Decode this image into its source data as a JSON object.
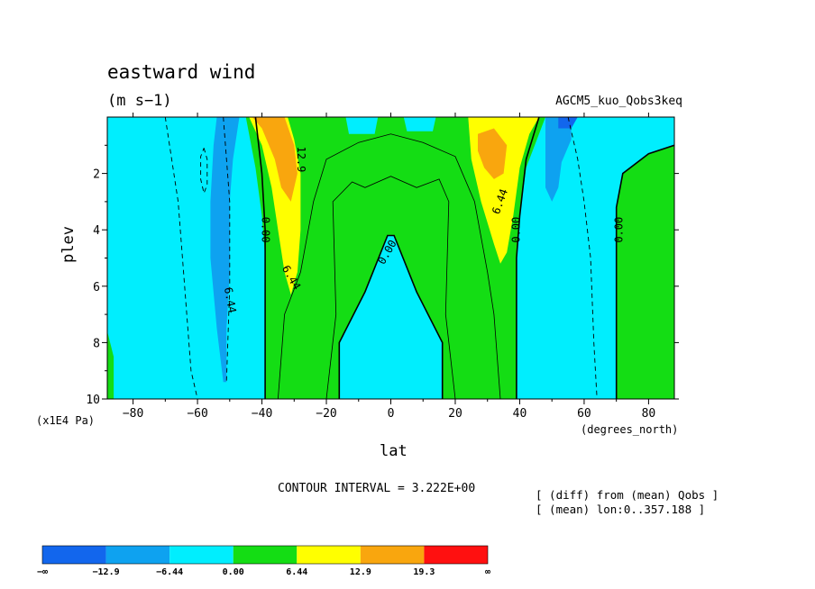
{
  "title": "eastward wind",
  "units": "(m s−1)",
  "experiment": "AGCM5_kuo_Qobs3keq",
  "notes": [
    "[ (diff) from (mean) Qobs ]",
    "[ (mean) lon:0..357.188 ]"
  ],
  "contour_interval": "CONTOUR INTERVAL = 3.222E+00",
  "colors": {
    "dark_blue": "#1266ed",
    "mid_blue": "#0ea2f0",
    "cyan": "#00eefe",
    "green": "#14dd14",
    "yellow": "#ffff00",
    "orange": "#f9a60e",
    "red": "#ff1010"
  },
  "chart_data": {
    "type": "contour",
    "title": "eastward wind",
    "xlabel": "lat",
    "ylabel": "plev",
    "x_unit": "(degrees_north)",
    "y_unit": "(x1E4 Pa)",
    "xlim": [
      -88,
      88
    ],
    "ylim": [
      10,
      0
    ],
    "x_ticks": [
      -80,
      -60,
      -40,
      -20,
      0,
      20,
      40,
      60,
      80
    ],
    "x_tick_labels": [
      "−80",
      "−60",
      "−40",
      "−20",
      "0",
      "20",
      "40",
      "60",
      "80"
    ],
    "y_ticks": [
      2,
      4,
      6,
      8,
      10
    ],
    "y_tick_labels": [
      "2",
      "4",
      "6",
      "8",
      "10"
    ],
    "contour_labels": [
      {
        "text": "12.9",
        "lat": -28,
        "plev": 1.5,
        "rotate": 90
      },
      {
        "text": "6.44",
        "lat": 34,
        "plev": 3.0,
        "rotate": -70
      },
      {
        "text": "0.00",
        "lat": 39,
        "plev": 4.0,
        "rotate": -90
      },
      {
        "text": "0.00",
        "lat": 71,
        "plev": 4.0,
        "rotate": -90
      },
      {
        "text": "0.00",
        "lat": -39,
        "plev": 4.0,
        "rotate": 90
      },
      {
        "text": "0.00",
        "lat": -1,
        "plev": 4.8,
        "rotate": -60
      },
      {
        "text": "6.44",
        "lat": -31,
        "plev": 5.7,
        "rotate": 60
      },
      {
        "text": "6.44",
        "lat": -50,
        "plev": 6.5,
        "rotate": 80
      }
    ],
    "colorbar": {
      "boundary_labels": [
        "−∞",
        "−12.9",
        "−6.44",
        "0.00",
        "6.44",
        "12.9",
        "19.3",
        "∞"
      ],
      "colors": [
        "#1266ed",
        "#0ea2f0",
        "#00eefe",
        "#14dd14",
        "#ffff00",
        "#f9a60e",
        "#ff1010"
      ]
    },
    "regions": [
      {
        "level": "green",
        "points": [
          [
            -88,
            7.6
          ],
          [
            -86,
            8.5
          ],
          [
            -86,
            10
          ],
          [
            -88,
            10
          ]
        ]
      },
      {
        "level": "green",
        "points": [
          [
            -45,
            0
          ],
          [
            48,
            0
          ],
          [
            46,
            0.6
          ],
          [
            42,
            1.8
          ],
          [
            40,
            3.5
          ],
          [
            39,
            5
          ],
          [
            39,
            10
          ],
          [
            16,
            10
          ],
          [
            16,
            8
          ],
          [
            8,
            6.2
          ],
          [
            1,
            4.2
          ],
          [
            -1,
            4.2
          ],
          [
            -8,
            6.2
          ],
          [
            -16,
            8
          ],
          [
            -16,
            10
          ],
          [
            -39,
            10
          ],
          [
            -39,
            5
          ],
          [
            -40,
            3.5
          ],
          [
            -42,
            1.8
          ]
        ]
      },
      {
        "level": "green",
        "points": [
          [
            88,
            1.0
          ],
          [
            80,
            1.3
          ],
          [
            72,
            2.0
          ],
          [
            70,
            3.2
          ],
          [
            70,
            10
          ],
          [
            88,
            10
          ]
        ]
      },
      {
        "level": "mid_blue",
        "points": [
          [
            -54,
            0
          ],
          [
            -47,
            0
          ],
          [
            -49,
            1.5
          ],
          [
            -50,
            3.0
          ],
          [
            -50,
            5.5
          ],
          [
            -51,
            7.5
          ],
          [
            -51,
            9.4
          ],
          [
            -52,
            9.4
          ],
          [
            -54,
            7.5
          ],
          [
            -56,
            5
          ],
          [
            -56,
            3
          ],
          [
            -55,
            1
          ]
        ]
      },
      {
        "level": "mid_blue",
        "points": [
          [
            48,
            0
          ],
          [
            56,
            0
          ],
          [
            56,
            0.8
          ],
          [
            53,
            1.6
          ],
          [
            52,
            2.5
          ],
          [
            50,
            3.0
          ],
          [
            48,
            2.5
          ],
          [
            48,
            1.0
          ]
        ]
      },
      {
        "level": "dark_blue",
        "points": [
          [
            52,
            0
          ],
          [
            58,
            0
          ],
          [
            56,
            0.4
          ],
          [
            52,
            0.4
          ]
        ]
      },
      {
        "level": "cyan",
        "points": [
          [
            -14,
            0
          ],
          [
            -4,
            0
          ],
          [
            -5,
            0.6
          ],
          [
            -13,
            0.6
          ]
        ]
      },
      {
        "level": "cyan",
        "points": [
          [
            4,
            0
          ],
          [
            14,
            0
          ],
          [
            13,
            0.5
          ],
          [
            5,
            0.5
          ]
        ]
      },
      {
        "level": "yellow",
        "points": [
          [
            -44,
            0
          ],
          [
            -32,
            0
          ],
          [
            -30,
            0.8
          ],
          [
            -28,
            2.0
          ],
          [
            -28,
            4.0
          ],
          [
            -29,
            5.5
          ],
          [
            -31,
            6.3
          ],
          [
            -33,
            5.5
          ],
          [
            -35,
            4.0
          ],
          [
            -37,
            2.5
          ],
          [
            -40,
            1.0
          ]
        ]
      },
      {
        "level": "orange",
        "points": [
          [
            -43,
            0
          ],
          [
            -33,
            0
          ],
          [
            -30,
            1.0
          ],
          [
            -29,
            2.0
          ],
          [
            -31,
            3.0
          ],
          [
            -34,
            2.5
          ],
          [
            -36,
            1.5
          ],
          [
            -40,
            0.4
          ]
        ]
      },
      {
        "level": "yellow",
        "points": [
          [
            24,
            0
          ],
          [
            46,
            0
          ],
          [
            43,
            0.6
          ],
          [
            40,
            1.8
          ],
          [
            38,
            3.5
          ],
          [
            36,
            4.8
          ],
          [
            34,
            5.2
          ],
          [
            32,
            4.5
          ],
          [
            28,
            3.0
          ],
          [
            25,
            1.5
          ]
        ]
      },
      {
        "level": "orange",
        "points": [
          [
            27,
            0.6
          ],
          [
            32,
            0.4
          ],
          [
            36,
            1.0
          ],
          [
            35,
            2.0
          ],
          [
            32,
            2.2
          ],
          [
            29,
            1.8
          ],
          [
            27,
            1.2
          ]
        ]
      }
    ],
    "contour_lines": [
      {
        "style": "solid",
        "points": [
          [
            -42,
            0
          ],
          [
            -40,
            2.0
          ],
          [
            -39,
            4.0
          ],
          [
            -39,
            10
          ]
        ]
      },
      {
        "style": "solid",
        "points": [
          [
            46,
            0
          ],
          [
            42,
            1.5
          ],
          [
            40,
            3.5
          ],
          [
            39,
            5
          ],
          [
            39,
            10
          ]
        ]
      },
      {
        "style": "solid",
        "points": [
          [
            -16,
            10
          ],
          [
            -16,
            8
          ],
          [
            -8,
            6.2
          ],
          [
            -1,
            4.2
          ],
          [
            1,
            4.2
          ],
          [
            8,
            6.2
          ],
          [
            16,
            8
          ],
          [
            16,
            10
          ]
        ]
      },
      {
        "style": "solid",
        "points": [
          [
            88,
            1.0
          ],
          [
            80,
            1.3
          ],
          [
            72,
            2.0
          ],
          [
            70,
            3.2
          ],
          [
            70,
            10
          ]
        ]
      },
      {
        "style": "thin",
        "points": [
          [
            -20,
            10
          ],
          [
            -17,
            7
          ],
          [
            -18,
            3
          ],
          [
            -12,
            2.3
          ],
          [
            -8,
            2.5
          ],
          [
            0,
            2.1
          ],
          [
            8,
            2.5
          ],
          [
            15,
            2.2
          ],
          [
            18,
            3
          ],
          [
            17,
            7
          ],
          [
            20,
            10
          ]
        ]
      },
      {
        "style": "thin",
        "points": [
          [
            -35,
            10
          ],
          [
            -33,
            7
          ],
          [
            -28,
            5.5
          ],
          [
            -24,
            3.0
          ],
          [
            -20,
            1.5
          ],
          [
            -10,
            0.9
          ],
          [
            0,
            0.6
          ],
          [
            10,
            0.9
          ],
          [
            20,
            1.4
          ],
          [
            26,
            3.0
          ],
          [
            30,
            5.5
          ],
          [
            32,
            7
          ],
          [
            34,
            10
          ]
        ]
      },
      {
        "style": "dashed",
        "points": [
          [
            -70,
            0
          ],
          [
            -66,
            3
          ],
          [
            -64,
            6
          ],
          [
            -62,
            9
          ],
          [
            -60,
            10
          ]
        ]
      },
      {
        "style": "dashed",
        "points": [
          [
            -52,
            0
          ],
          [
            -50,
            3
          ],
          [
            -50,
            6
          ],
          [
            -51,
            9.4
          ]
        ]
      },
      {
        "style": "dashed",
        "points": [
          [
            55,
            0
          ],
          [
            58,
            1.5
          ],
          [
            60,
            3
          ],
          [
            62,
            5
          ],
          [
            63,
            8
          ],
          [
            64,
            10
          ]
        ]
      },
      {
        "style": "dashed",
        "points": [
          [
            -58,
            1.1
          ],
          [
            -57,
            1.5
          ],
          [
            -57,
            2.4
          ],
          [
            -58,
            2.7
          ],
          [
            -59,
            2.2
          ],
          [
            -59,
            1.4
          ],
          [
            -58,
            1.1
          ]
        ]
      }
    ]
  }
}
